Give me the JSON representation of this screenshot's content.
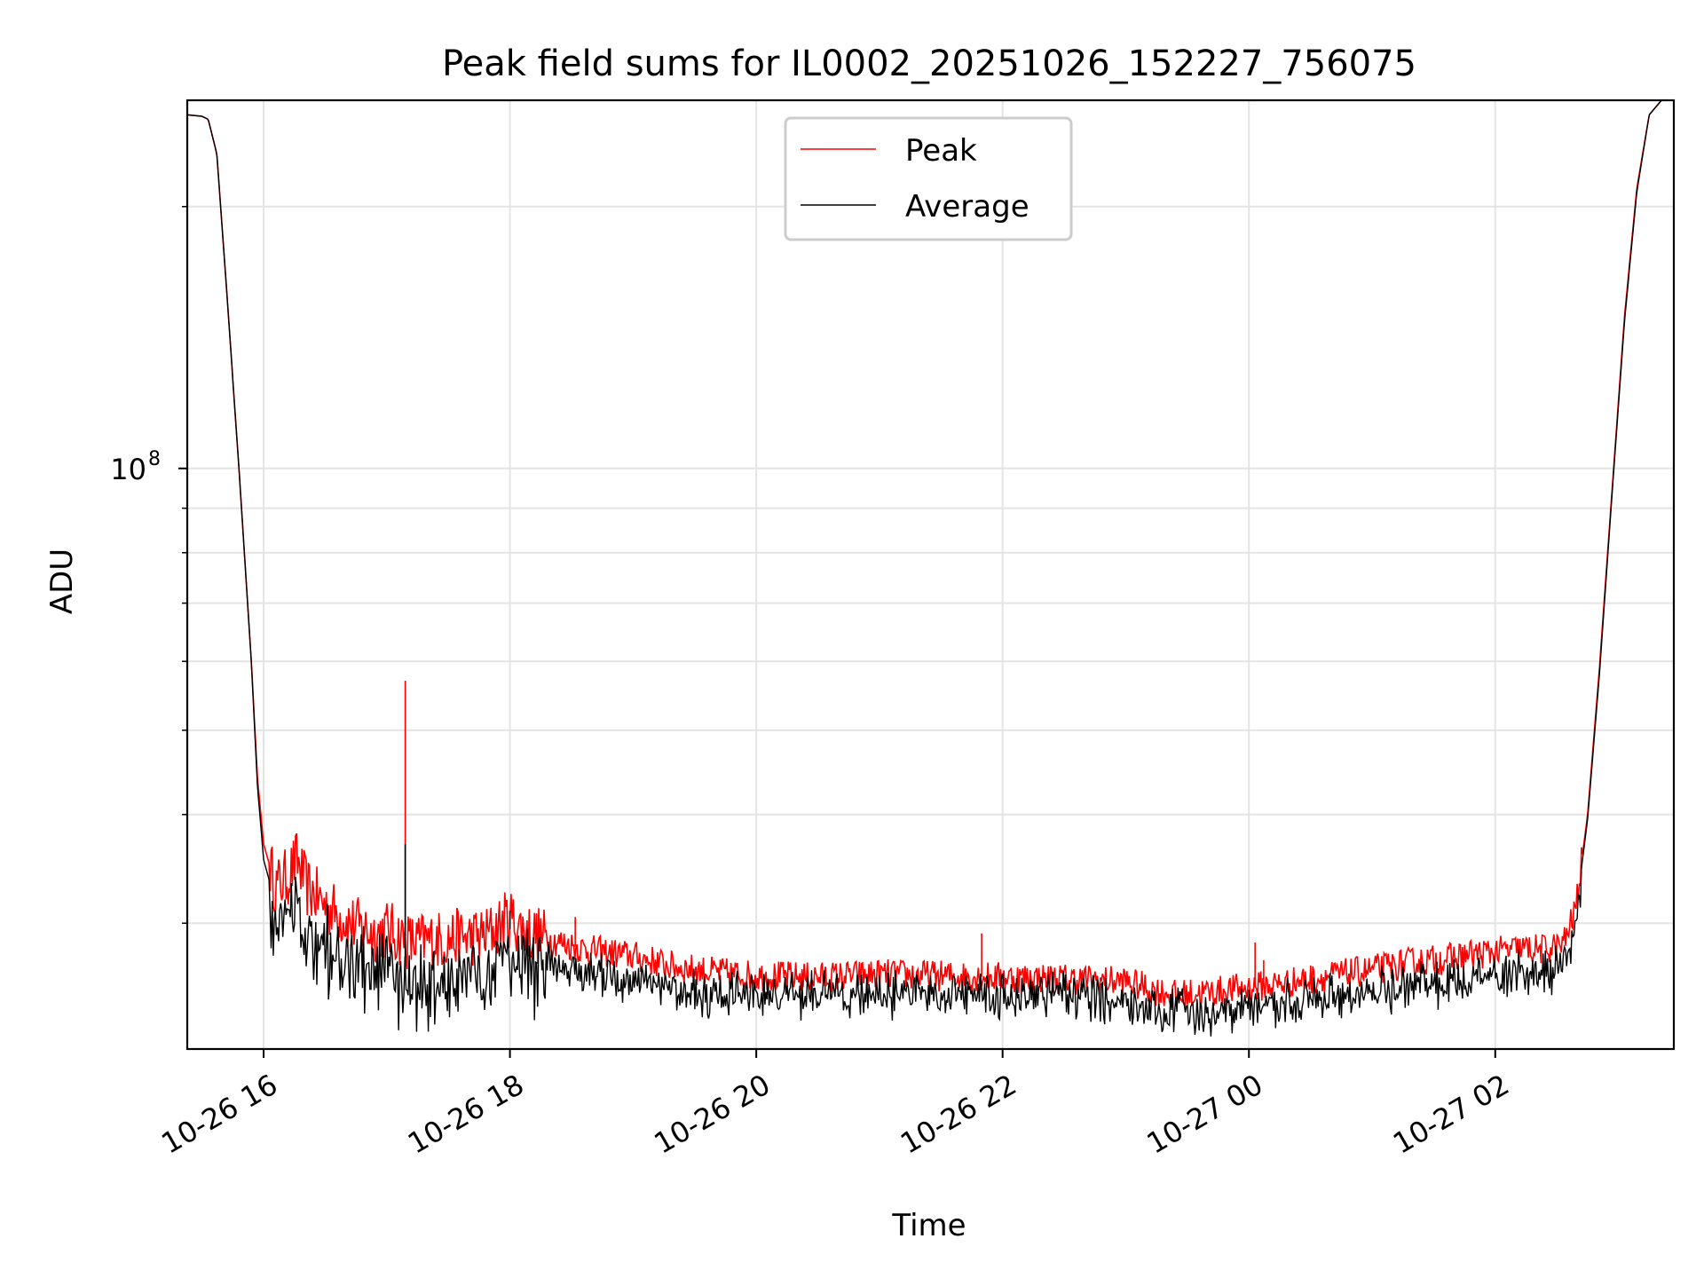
{
  "chart_data": {
    "type": "line",
    "title": "Peak field sums for IL0002_20251026_152227_756075",
    "xlabel": "Time",
    "ylabel": "ADU",
    "yscale": "log",
    "grid": true,
    "legend_position": "upper center",
    "xlim_hours": [
      15.38,
      3.45
    ],
    "ylim": [
      21500000,
      265000000
    ],
    "x_ticks": [
      {
        "hour": 16,
        "label": "10-26 16"
      },
      {
        "hour": 18,
        "label": "10-26 18"
      },
      {
        "hour": 20,
        "label": "10-26 20"
      },
      {
        "hour": 22,
        "label": "10-26 22"
      },
      {
        "hour": 24,
        "label": "10-27 00"
      },
      {
        "hour": 26,
        "label": "10-27 02"
      }
    ],
    "y_ticks": [
      {
        "value": 100000000,
        "base": "10",
        "exp": "8"
      }
    ],
    "y_minor_ticks": [
      30000000,
      40000000,
      50000000,
      60000000,
      70000000,
      80000000,
      90000000,
      200000000
    ],
    "series": [
      {
        "name": "Peak",
        "color": "#ff0000",
        "x_hours": [
          15.38,
          15.5,
          15.55,
          15.62,
          15.7,
          15.8,
          15.9,
          15.95,
          16.0,
          16.1,
          16.2,
          16.27,
          16.35,
          16.5,
          16.7,
          16.9,
          17.0,
          17.2,
          17.5,
          17.8,
          18.0,
          18.1,
          18.3,
          18.6,
          19.0,
          19.3,
          19.6,
          20.0,
          20.5,
          21.0,
          21.5,
          22.0,
          22.5,
          23.0,
          23.2,
          23.4,
          23.7,
          24.0,
          24.3,
          24.6,
          25.0,
          25.3,
          25.6,
          25.8,
          26.0,
          26.2,
          26.4,
          26.55,
          26.65,
          26.75,
          26.85,
          26.95,
          27.05,
          27.15,
          27.25,
          27.35,
          27.45
        ],
        "values": [
          255000000,
          254000000,
          252000000,
          230000000,
          160000000,
          100000000,
          60000000,
          44000000,
          37000000,
          33000000,
          34000000,
          35500000,
          33000000,
          31500000,
          30000000,
          29200000,
          29500000,
          28500000,
          28800000,
          29000000,
          30500000,
          29500000,
          28800000,
          28000000,
          27500000,
          26800000,
          26400000,
          26100000,
          26000000,
          26200000,
          26100000,
          26000000,
          25900000,
          25700000,
          25200000,
          24800000,
          25000000,
          25300000,
          25600000,
          26000000,
          26500000,
          27000000,
          27300000,
          27600000,
          27800000,
          28000000,
          28000000,
          28300000,
          31000000,
          40000000,
          60000000,
          95000000,
          150000000,
          210000000,
          255000000,
          265000000,
          265000000
        ],
        "spikes": [
          {
            "hour": 17.15,
            "value": 57000000
          },
          {
            "hour": 18.53,
            "value": 30500000
          },
          {
            "hour": 21.83,
            "value": 29200000
          },
          {
            "hour": 24.05,
            "value": 28500000
          },
          {
            "hour": 24.12,
            "value": 27200000
          }
        ]
      },
      {
        "name": "Average",
        "color": "#000000",
        "x_hours": [
          15.38,
          15.5,
          15.55,
          15.62,
          15.7,
          15.8,
          15.9,
          15.95,
          16.0,
          16.1,
          16.2,
          16.27,
          16.35,
          16.5,
          16.7,
          16.9,
          17.0,
          17.2,
          17.5,
          17.8,
          18.0,
          18.1,
          18.3,
          18.6,
          19.0,
          19.3,
          19.6,
          20.0,
          20.5,
          21.0,
          21.5,
          22.0,
          22.5,
          23.0,
          23.2,
          23.4,
          23.7,
          24.0,
          24.3,
          24.6,
          25.0,
          25.3,
          25.6,
          25.8,
          26.0,
          26.2,
          26.4,
          26.55,
          26.65,
          26.75,
          26.85,
          26.95,
          27.05,
          27.15,
          27.25,
          27.35,
          27.45
        ],
        "values": [
          255000000,
          254000000,
          252000000,
          230000000,
          160000000,
          100000000,
          60000000,
          43000000,
          35500000,
          31500000,
          32000000,
          33500000,
          31500000,
          30000000,
          28500000,
          27800000,
          28000000,
          27200000,
          27500000,
          27800000,
          29500000,
          28500000,
          27900000,
          27300000,
          26800000,
          26200000,
          25800000,
          25600000,
          25600000,
          25800000,
          25700000,
          25600000,
          25500000,
          25300000,
          24900000,
          24500000,
          24600000,
          24900000,
          25200000,
          25500000,
          25800000,
          26200000,
          26400000,
          26600000,
          26800000,
          27000000,
          27200000,
          27500000,
          30500000,
          39500000,
          59000000,
          94000000,
          148000000,
          208000000,
          255000000,
          265000000,
          265000000
        ],
        "spikes": [
          {
            "hour": 17.15,
            "value": 37000000
          },
          {
            "hour": 18.0,
            "value": 31000000
          }
        ]
      }
    ]
  }
}
